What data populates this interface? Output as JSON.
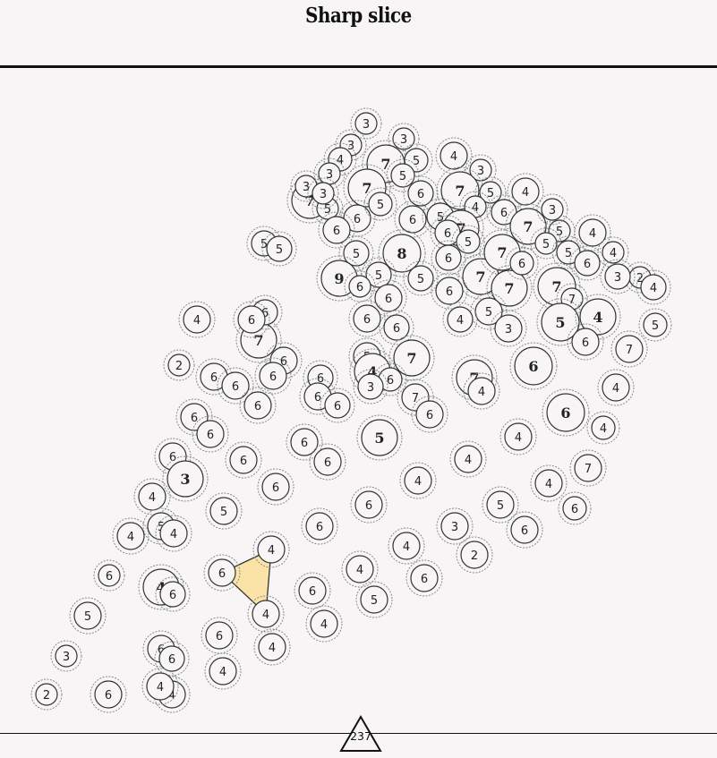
{
  "title": "Sharp slice",
  "score": "237",
  "colors": {
    "background": "#f7f5f6",
    "circle_fill": "#f7f5f6",
    "circle_stroke": "#333333",
    "halo_stroke": "#8a8a8a",
    "selection_fill": "#fbe3a8",
    "selection_stroke": "#333333"
  },
  "nodes": [
    {
      "id": "n1",
      "label": "3"
    },
    {
      "id": "n2",
      "label": "3"
    },
    {
      "id": "n3",
      "label": "3"
    },
    {
      "id": "n4",
      "label": "4"
    },
    {
      "id": "n5",
      "label": "7"
    },
    {
      "id": "n6",
      "label": "5"
    },
    {
      "id": "n7",
      "label": "5"
    },
    {
      "id": "n8",
      "label": "4"
    },
    {
      "id": "n9",
      "label": "3"
    },
    {
      "id": "n10",
      "label": "3"
    },
    {
      "id": "n11",
      "label": "7"
    },
    {
      "id": "n12",
      "label": "7"
    },
    {
      "id": "n13",
      "label": "3"
    },
    {
      "id": "n14",
      "label": "5"
    },
    {
      "id": "n15",
      "label": "6"
    },
    {
      "id": "n16",
      "label": "7"
    },
    {
      "id": "n17",
      "label": "5"
    },
    {
      "id": "n18",
      "label": "4"
    },
    {
      "id": "n19",
      "label": "4"
    },
    {
      "id": "n20",
      "label": "3"
    },
    {
      "id": "n21",
      "label": "6"
    },
    {
      "id": "n22",
      "label": "6"
    },
    {
      "id": "n23",
      "label": "6"
    },
    {
      "id": "n24",
      "label": "5"
    },
    {
      "id": "n25",
      "label": "6"
    },
    {
      "id": "n26",
      "label": "5"
    },
    {
      "id": "n27",
      "label": "7"
    },
    {
      "id": "n28",
      "label": "5"
    },
    {
      "id": "n29",
      "label": "5"
    },
    {
      "id": "n30",
      "label": "4"
    },
    {
      "id": "n31",
      "label": "3"
    },
    {
      "id": "n32",
      "label": "5"
    },
    {
      "id": "n33",
      "label": "4"
    },
    {
      "id": "n34",
      "label": "8"
    },
    {
      "id": "n35",
      "label": "7"
    },
    {
      "id": "n36",
      "label": "6"
    },
    {
      "id": "n37",
      "label": "5"
    },
    {
      "id": "n38",
      "label": "5"
    },
    {
      "id": "n39",
      "label": "9"
    },
    {
      "id": "n40",
      "label": "6"
    },
    {
      "id": "n41",
      "label": "5"
    },
    {
      "id": "n42",
      "label": "5"
    },
    {
      "id": "n43",
      "label": "6"
    },
    {
      "id": "n44",
      "label": "7"
    },
    {
      "id": "n45",
      "label": "7"
    },
    {
      "id": "n46",
      "label": "6"
    },
    {
      "id": "n47",
      "label": "7"
    },
    {
      "id": "n48",
      "label": "6"
    },
    {
      "id": "n49",
      "label": "2"
    },
    {
      "id": "n50",
      "label": "4"
    },
    {
      "id": "n51",
      "label": "3"
    },
    {
      "id": "n52",
      "label": "6"
    },
    {
      "id": "n53",
      "label": "5"
    },
    {
      "id": "n54",
      "label": "6"
    },
    {
      "id": "n55",
      "label": "7"
    },
    {
      "id": "n56",
      "label": "7"
    },
    {
      "id": "n57",
      "label": "6"
    },
    {
      "id": "n58",
      "label": "5"
    },
    {
      "id": "n59",
      "label": "6"
    },
    {
      "id": "n60",
      "label": "4"
    },
    {
      "id": "n61",
      "label": "3"
    },
    {
      "id": "n62",
      "label": "5"
    },
    {
      "id": "n63",
      "label": "4"
    },
    {
      "id": "n64",
      "label": "6"
    },
    {
      "id": "n65",
      "label": "4"
    },
    {
      "id": "n66",
      "label": "7"
    },
    {
      "id": "n67",
      "label": "2"
    },
    {
      "id": "n68",
      "label": "5"
    },
    {
      "id": "n69",
      "label": "5"
    },
    {
      "id": "n70",
      "label": "6"
    },
    {
      "id": "n71",
      "label": "6"
    },
    {
      "id": "n72",
      "label": "7"
    },
    {
      "id": "n73",
      "label": "6"
    },
    {
      "id": "n74",
      "label": "6"
    },
    {
      "id": "n75",
      "label": "6"
    },
    {
      "id": "n76",
      "label": "6"
    },
    {
      "id": "n77",
      "label": "6"
    },
    {
      "id": "n78",
      "label": "7"
    },
    {
      "id": "n79",
      "label": "5"
    },
    {
      "id": "n80",
      "label": "4"
    },
    {
      "id": "n81",
      "label": "6"
    },
    {
      "id": "n82",
      "label": "4"
    },
    {
      "id": "n83",
      "label": "6"
    },
    {
      "id": "n84",
      "label": "7"
    },
    {
      "id": "n85",
      "label": "6"
    },
    {
      "id": "n86",
      "label": "6"
    },
    {
      "id": "n87",
      "label": "3"
    },
    {
      "id": "n88",
      "label": "4"
    },
    {
      "id": "n89",
      "label": "7"
    },
    {
      "id": "n90",
      "label": "6"
    },
    {
      "id": "n91",
      "label": "6"
    },
    {
      "id": "n92",
      "label": "6"
    },
    {
      "id": "n93",
      "label": "6"
    },
    {
      "id": "n94",
      "label": "4"
    },
    {
      "id": "n95",
      "label": "6"
    },
    {
      "id": "n96",
      "label": "4"
    },
    {
      "id": "n97",
      "label": "5"
    },
    {
      "id": "n98",
      "label": "6"
    },
    {
      "id": "n99",
      "label": "6"
    },
    {
      "id": "n100",
      "label": "6"
    },
    {
      "id": "n101",
      "label": "6"
    },
    {
      "id": "n102",
      "label": "3"
    },
    {
      "id": "n103",
      "label": "4"
    },
    {
      "id": "n104",
      "label": "7"
    },
    {
      "id": "n105",
      "label": "4"
    },
    {
      "id": "n106",
      "label": "6"
    },
    {
      "id": "n107",
      "label": "4"
    },
    {
      "id": "n108",
      "label": "4"
    },
    {
      "id": "n109",
      "label": "6"
    },
    {
      "id": "n110",
      "label": "5"
    },
    {
      "id": "n111",
      "label": "5"
    },
    {
      "id": "n112",
      "label": "4"
    },
    {
      "id": "n113",
      "label": "5"
    },
    {
      "id": "n114",
      "label": "6"
    },
    {
      "id": "n115",
      "label": "6"
    },
    {
      "id": "n116",
      "label": "4"
    },
    {
      "id": "n117",
      "label": "3"
    },
    {
      "id": "n118",
      "label": "6"
    },
    {
      "id": "n119",
      "label": "4"
    },
    {
      "id": "n120",
      "label": "4"
    },
    {
      "id": "n121",
      "label": "2"
    },
    {
      "id": "n122",
      "label": "6"
    },
    {
      "id": "n123",
      "label": "6"
    },
    {
      "id": "n124",
      "label": "4"
    },
    {
      "id": "n125",
      "label": "6"
    },
    {
      "id": "n126",
      "label": "6"
    },
    {
      "id": "n127",
      "label": "4"
    },
    {
      "id": "n128",
      "label": "6"
    }
  ],
  "selected_nodes": [
    "n102",
    "n103",
    "n104"
  ]
}
